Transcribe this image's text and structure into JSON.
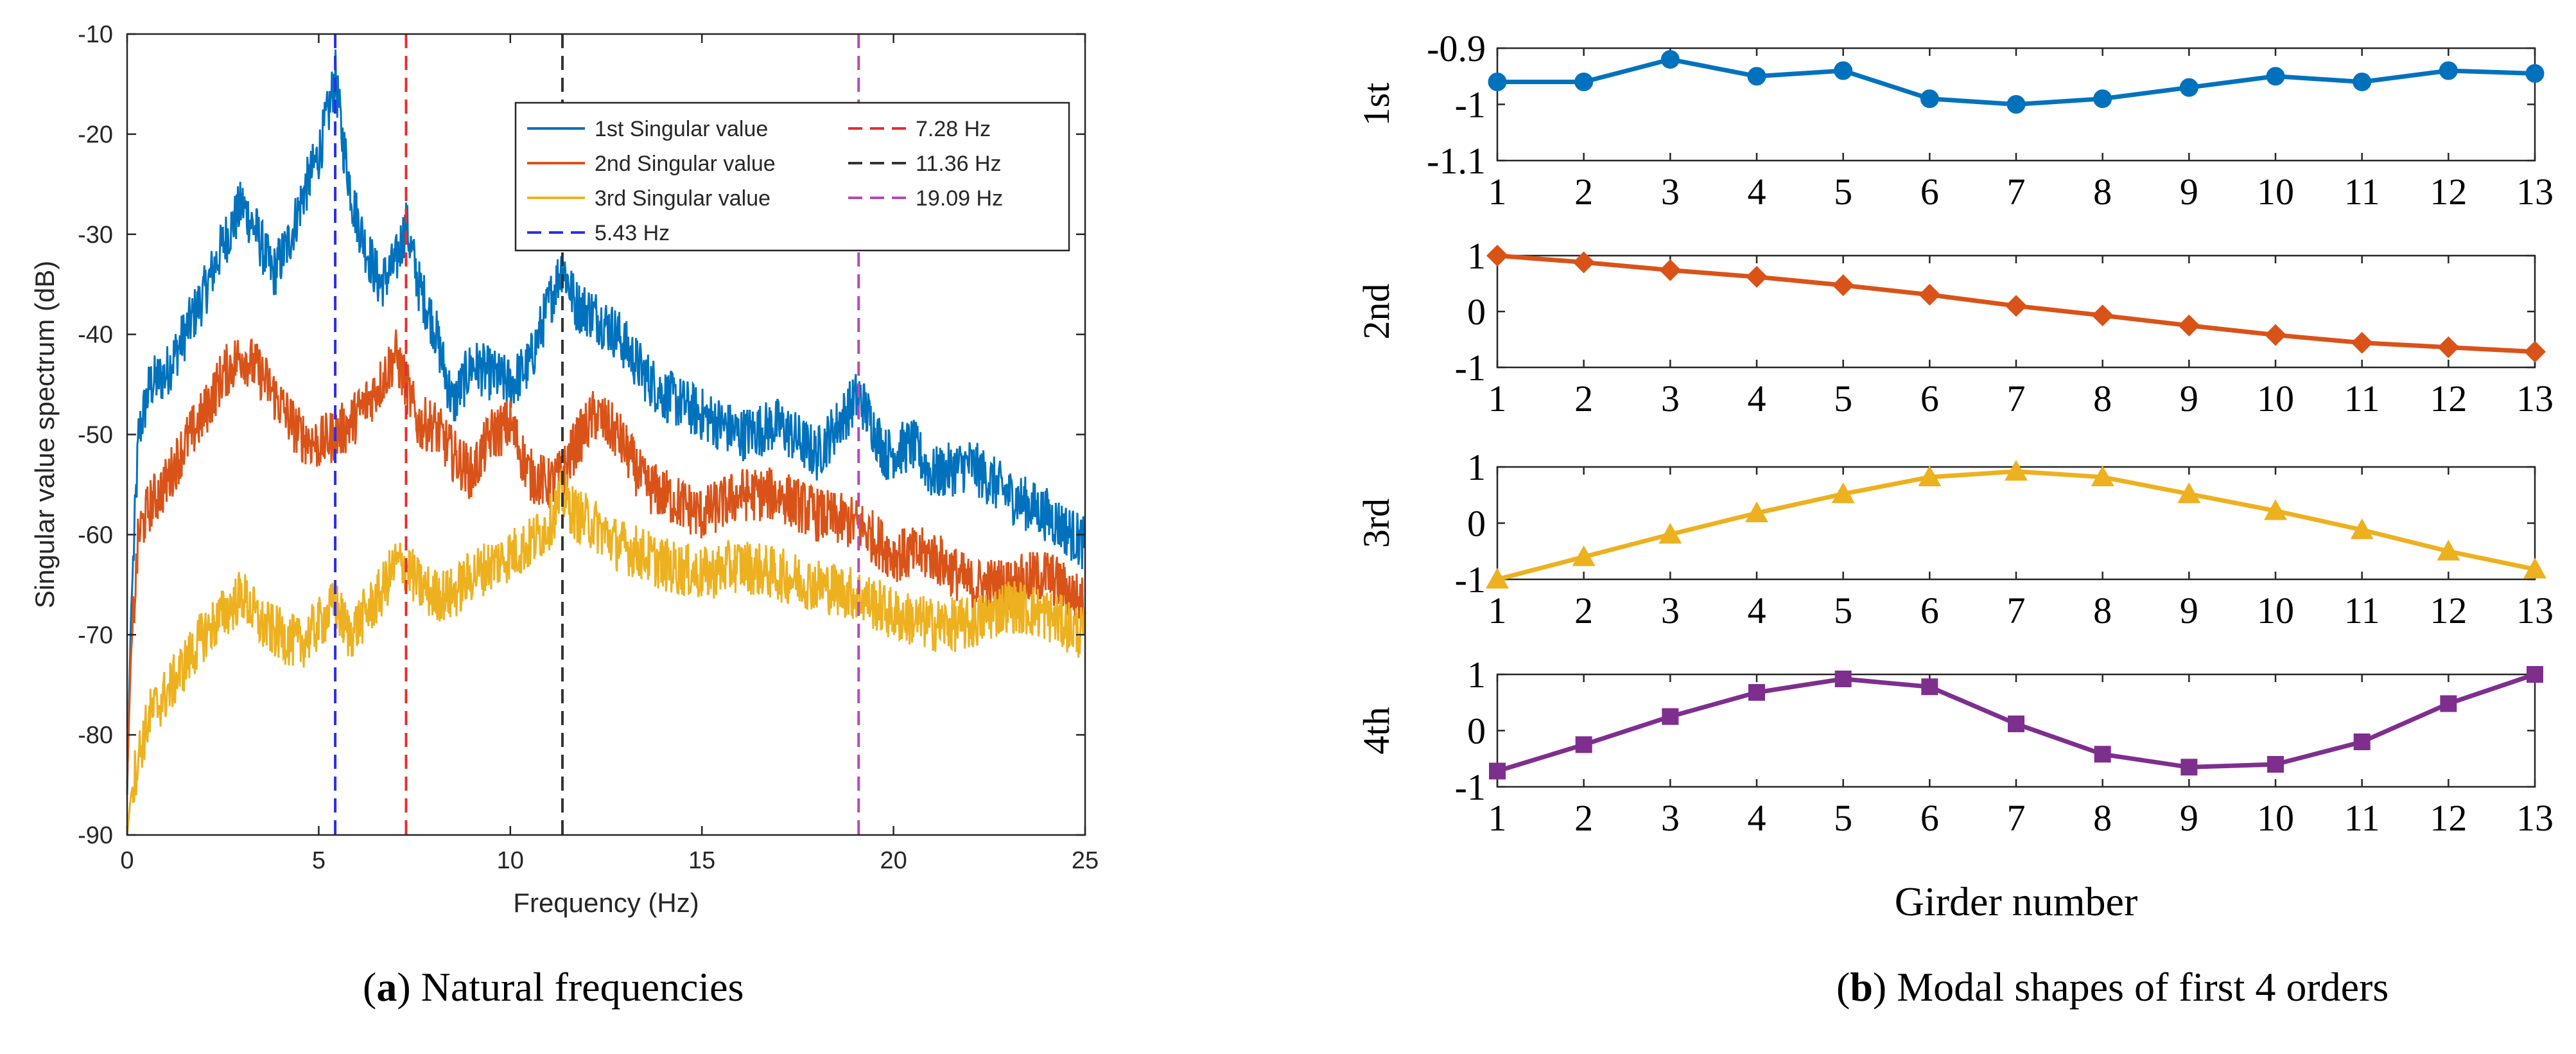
{
  "captions": {
    "a": {
      "paren_open": "(",
      "letter": "a",
      "paren_close": ")",
      "text": " Natural frequencies"
    },
    "b": {
      "paren_open": "(",
      "letter": "b",
      "paren_close": ")",
      "text": " Modal shapes of first 4 orders"
    }
  },
  "chart_data": [
    {
      "id": "a",
      "type": "line",
      "title": "",
      "xlabel": "Frequency (Hz)",
      "ylabel": "Singular value spectrum (dB)",
      "xlim": [
        0,
        25
      ],
      "ylim": [
        -90,
        -10
      ],
      "xticks": [
        0,
        5,
        10,
        15,
        20,
        25
      ],
      "yticks": [
        -10,
        -20,
        -30,
        -40,
        -50,
        -60,
        -70,
        -80,
        -90
      ],
      "ytick_labels": [
        "-10",
        "-20",
        "-30",
        "-40",
        "-50",
        "-60",
        "-70",
        "-80",
        "-90"
      ],
      "grid": false,
      "legend_position": "top-right",
      "series": [
        {
          "name": "1st Singular value",
          "color": "#0072BD",
          "x": [
            0,
            0.1,
            0.3,
            0.6,
            1.0,
            1.5,
            2.0,
            2.5,
            3.0,
            3.4,
            3.8,
            4.2,
            4.6,
            5.0,
            5.3,
            5.43,
            5.6,
            5.9,
            6.2,
            6.6,
            7.0,
            7.28,
            7.6,
            8.0,
            8.5,
            9.0,
            9.5,
            10.0,
            10.5,
            11.0,
            11.36,
            11.7,
            12.2,
            12.8,
            13.5,
            14.0,
            15.0,
            16.0,
            17.0,
            18.0,
            19.09,
            19.8,
            20.5,
            21.0,
            22.0,
            23.0,
            24.0,
            25.0
          ],
          "y": [
            -86,
            -68,
            -50,
            -45,
            -44,
            -40,
            -36,
            -31,
            -27,
            -30,
            -34,
            -31,
            -26,
            -22,
            -17,
            -14,
            -20,
            -27,
            -31,
            -35,
            -33,
            -29,
            -35,
            -39,
            -47,
            -43,
            -44,
            -45,
            -43,
            -37,
            -33,
            -37,
            -38,
            -40,
            -44,
            -46,
            -48,
            -50,
            -49,
            -52,
            -46,
            -52,
            -51,
            -54,
            -53,
            -56,
            -58,
            -61
          ]
        },
        {
          "name": "2nd Singular value",
          "color": "#D95319",
          "x": [
            0,
            0.1,
            0.3,
            0.6,
            1.0,
            1.5,
            2.0,
            2.5,
            3.0,
            3.5,
            4.0,
            4.5,
            5.0,
            5.43,
            5.8,
            6.2,
            6.6,
            7.0,
            7.28,
            7.6,
            8.0,
            8.5,
            9.0,
            9.5,
            10.0,
            10.5,
            11.0,
            11.36,
            11.7,
            12.2,
            12.8,
            13.5,
            14.0,
            15.0,
            16.0,
            17.0,
            18.0,
            19.09,
            20.0,
            21.0,
            22.0,
            23.0,
            24.0,
            25.0
          ],
          "y": [
            -85,
            -72,
            -60,
            -57,
            -55,
            -51,
            -48,
            -44,
            -42,
            -44,
            -47,
            -50,
            -51,
            -50,
            -49,
            -47,
            -45,
            -42,
            -45,
            -49,
            -49,
            -52,
            -54,
            -50,
            -49,
            -54,
            -55,
            -54,
            -51,
            -48,
            -50,
            -55,
            -56,
            -58,
            -56,
            -56,
            -58,
            -59,
            -62,
            -62,
            -65,
            -65,
            -64,
            -67
          ]
        },
        {
          "name": "3rd Singular value",
          "color": "#EDB120",
          "x": [
            0,
            0.1,
            0.3,
            0.6,
            1.0,
            1.5,
            2.0,
            2.5,
            3.0,
            3.5,
            4.0,
            4.5,
            5.0,
            5.43,
            5.8,
            6.2,
            6.6,
            7.0,
            7.28,
            7.6,
            8.0,
            8.5,
            9.0,
            9.5,
            10.0,
            10.5,
            11.0,
            11.36,
            11.7,
            12.2,
            12.8,
            13.5,
            14.0,
            15.0,
            16.0,
            17.0,
            18.0,
            19.09,
            20.0,
            21.0,
            22.0,
            23.0,
            24.0,
            25.0
          ],
          "y": [
            -90,
            -86,
            -82,
            -78,
            -76,
            -73,
            -70,
            -68,
            -66,
            -69,
            -70,
            -71,
            -69,
            -67,
            -70,
            -68,
            -66,
            -63,
            -63,
            -65,
            -66,
            -66,
            -64,
            -63,
            -62,
            -61,
            -59,
            -56,
            -58,
            -59,
            -61,
            -62,
            -63,
            -64,
            -63,
            -64,
            -65,
            -66,
            -68,
            -69,
            -69,
            -67,
            -68,
            -70
          ]
        }
      ],
      "vlines": [
        {
          "label": "5.43 Hz",
          "x": 5.43,
          "color": "#2E2EE6"
        },
        {
          "label": "7.28 Hz",
          "x": 7.28,
          "color": "#E62E2E"
        },
        {
          "label": "11.36 Hz",
          "x": 11.36,
          "color": "#333333"
        },
        {
          "label": "19.09 Hz",
          "x": 19.09,
          "color": "#B54AB5"
        }
      ]
    },
    {
      "id": "b",
      "type": "line",
      "title": "",
      "xlabel": "Girder number",
      "x": [
        1,
        2,
        3,
        4,
        5,
        6,
        7,
        8,
        9,
        10,
        11,
        12,
        13
      ],
      "xticks": [
        1,
        2,
        3,
        4,
        5,
        6,
        7,
        8,
        9,
        10,
        11,
        12,
        13
      ],
      "grid": false,
      "panels": [
        {
          "ylabel": "1st",
          "color": "#0072BD",
          "marker": "circle",
          "ylim": [
            -1.1,
            -0.9
          ],
          "yticks": [
            -0.9,
            -1,
            -1.1
          ],
          "ytick_labels": [
            "-0.9",
            "-1",
            "-1.1"
          ],
          "values": [
            -0.96,
            -0.96,
            -0.92,
            -0.95,
            -0.94,
            -0.99,
            -1.0,
            -0.99,
            -0.97,
            -0.95,
            -0.96,
            -0.94,
            -0.945
          ]
        },
        {
          "ylabel": "2nd",
          "color": "#D95319",
          "marker": "diamond",
          "ylim": [
            -1,
            1
          ],
          "yticks": [
            1,
            0,
            -1
          ],
          "ytick_labels": [
            "1",
            "0",
            "-1"
          ],
          "values": [
            1.0,
            0.88,
            0.74,
            0.62,
            0.47,
            0.3,
            0.1,
            -0.07,
            -0.25,
            -0.42,
            -0.56,
            -0.64,
            -0.72
          ]
        },
        {
          "ylabel": "3rd",
          "color": "#EDB120",
          "marker": "triangle",
          "ylim": [
            -1,
            1
          ],
          "yticks": [
            1,
            0,
            -1
          ],
          "ytick_labels": [
            "1",
            "0",
            "-1"
          ],
          "values": [
            -1.0,
            -0.6,
            -0.2,
            0.18,
            0.52,
            0.82,
            0.92,
            0.82,
            0.52,
            0.22,
            -0.12,
            -0.5,
            -0.82
          ]
        },
        {
          "ylabel": "4th",
          "color": "#7E2F8E",
          "marker": "square",
          "ylim": [
            -1,
            1
          ],
          "yticks": [
            1,
            0,
            -1
          ],
          "ytick_labels": [
            "1",
            "0",
            "-1"
          ],
          "values": [
            -0.72,
            -0.25,
            0.25,
            0.68,
            0.92,
            0.78,
            0.12,
            -0.42,
            -0.65,
            -0.6,
            -0.2,
            0.48,
            1.0
          ]
        }
      ]
    }
  ]
}
